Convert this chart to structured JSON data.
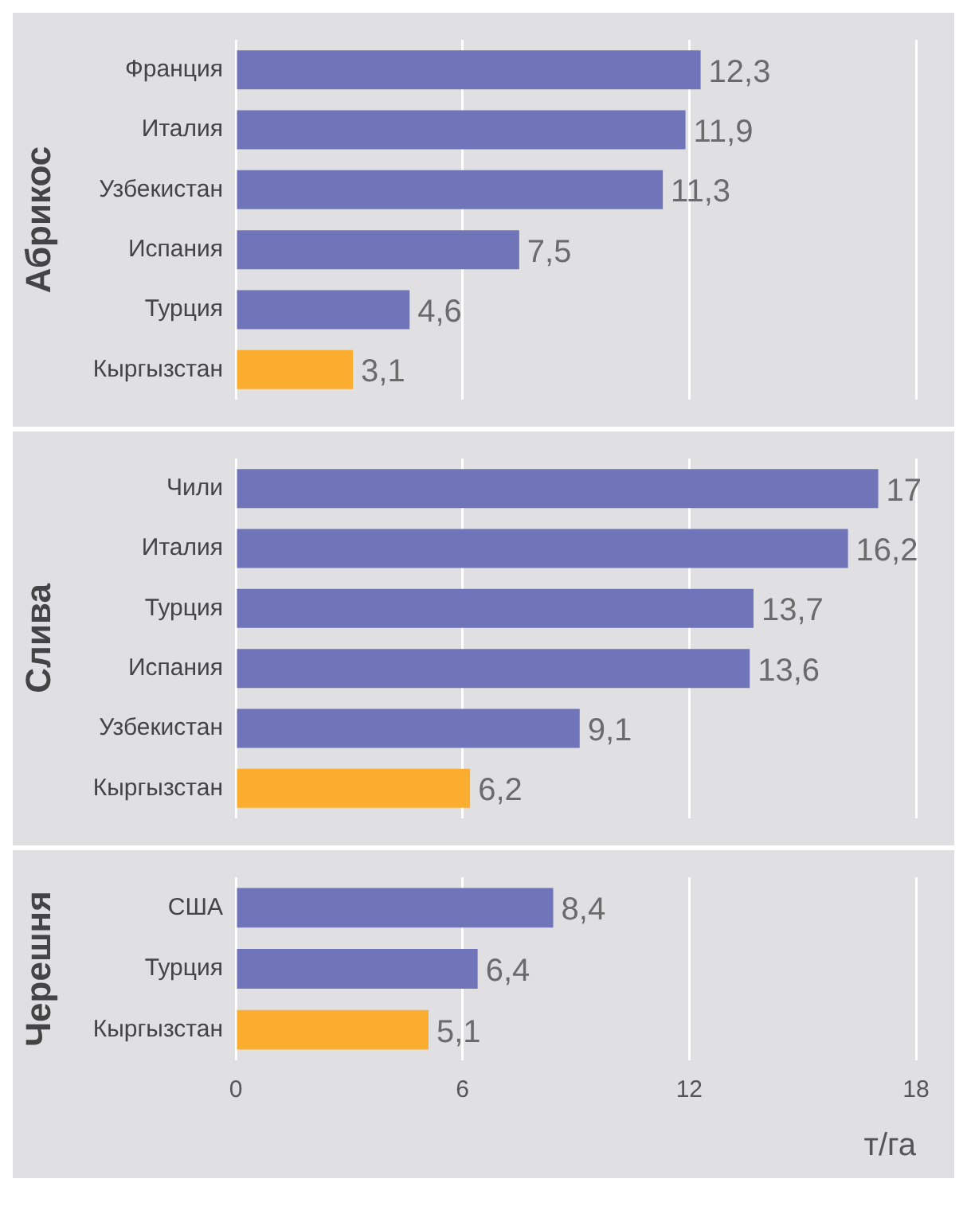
{
  "chart_data": [
    {
      "type": "bar",
      "orientation": "horizontal",
      "ylabel": "Абрикос",
      "categories": [
        "Франция",
        "Италия",
        "Узбекистан",
        "Испания",
        "Турция",
        "Кыргызстан"
      ],
      "values": [
        12.3,
        11.9,
        11.3,
        7.5,
        4.6,
        3.1
      ],
      "colors": [
        "#6f75b8",
        "#6f75b8",
        "#6f75b8",
        "#6f75b8",
        "#6f75b8",
        "#fbad2f"
      ],
      "value_labels": [
        "12,3",
        "11,9",
        "11,3",
        "7,5",
        "4,6",
        "3,1"
      ],
      "xlim": [
        0,
        18
      ],
      "xticks": [
        0,
        6,
        12,
        18
      ],
      "grid": "x",
      "tick_labels": "y"
    },
    {
      "type": "bar",
      "orientation": "horizontal",
      "ylabel": "Слива",
      "categories": [
        "Чили",
        "Италия",
        "Турция",
        "Испания",
        "Узбекистан",
        "Кыргызстан"
      ],
      "values": [
        17,
        16.2,
        13.7,
        13.6,
        9.1,
        6.2
      ],
      "colors": [
        "#6f75b8",
        "#6f75b8",
        "#6f75b8",
        "#6f75b8",
        "#6f75b8",
        "#fbad2f"
      ],
      "value_labels": [
        "17",
        "16,2",
        "13,7",
        "13,6",
        "9,1",
        "6,2"
      ],
      "xlim": [
        0,
        18
      ],
      "xticks": [
        0,
        6,
        12,
        18
      ],
      "grid": "x",
      "tick_labels": "y"
    },
    {
      "type": "bar",
      "orientation": "horizontal",
      "ylabel": "Черешня",
      "xlabel": "т/га",
      "categories": [
        "США",
        "Турция",
        "Кыргызстан"
      ],
      "values": [
        8.4,
        6.4,
        5.1
      ],
      "colors": [
        "#6f75b8",
        "#6f75b8",
        "#fbad2f"
      ],
      "value_labels": [
        "8,4",
        "6,4",
        "5,1"
      ],
      "xlim": [
        0,
        18
      ],
      "xticks": [
        0,
        6,
        12,
        18
      ],
      "grid": "x"
    }
  ]
}
